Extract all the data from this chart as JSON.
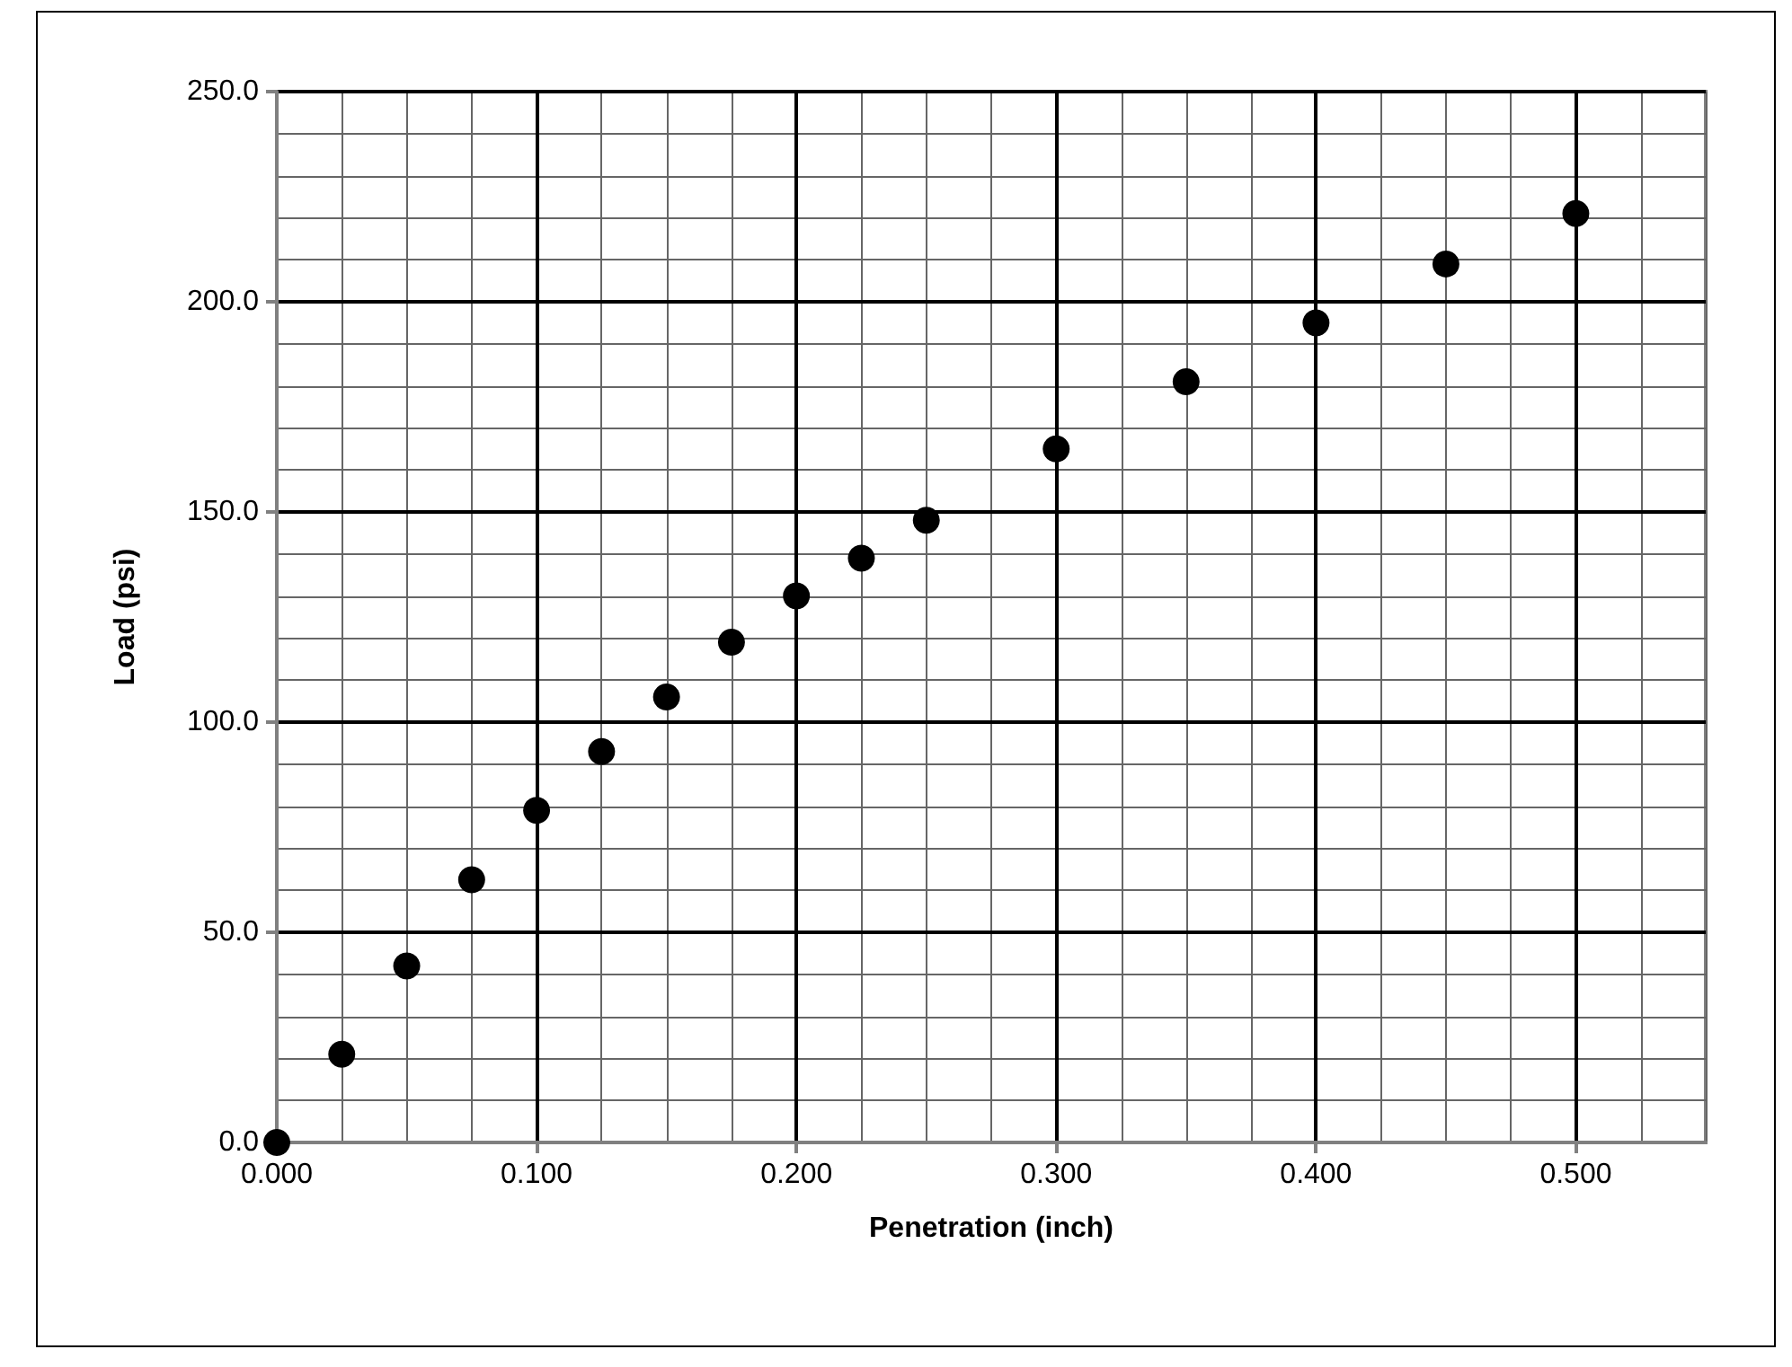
{
  "chart_data": {
    "type": "scatter",
    "xlabel": "Penetration (inch)",
    "ylabel": "Load (psi)",
    "x": [
      0,
      0.025,
      0.05,
      0.075,
      0.1,
      0.125,
      0.15,
      0.175,
      0.2,
      0.225,
      0.25,
      0.3,
      0.35,
      0.4,
      0.45,
      0.5
    ],
    "series": [
      {
        "color": "#000000",
        "values": [
          0,
          21,
          42,
          62.5,
          79,
          93,
          106,
          119,
          130,
          139,
          148,
          165,
          181,
          195,
          209,
          221
        ]
      }
    ],
    "xlim": [
      0,
      0.55
    ],
    "xticks": [
      {
        "value": 0,
        "label": "0.000"
      },
      {
        "value": 0.1,
        "label": "0.100"
      },
      {
        "value": 0.2,
        "label": "0.200"
      },
      {
        "value": 0.3,
        "label": "0.300"
      },
      {
        "value": 0.4,
        "label": "0.400"
      },
      {
        "value": 0.5,
        "label": "0.500"
      }
    ],
    "ylim": [
      0,
      250
    ],
    "yticks": [
      {
        "value": 0,
        "label": "0.0"
      },
      {
        "value": 50,
        "label": "50.0"
      },
      {
        "value": 100,
        "label": "100.0"
      },
      {
        "value": 150,
        "label": "150.0"
      },
      {
        "value": 200,
        "label": "200.0"
      },
      {
        "value": 250,
        "label": "250.0"
      }
    ],
    "grid": true,
    "marker": "circle"
  }
}
